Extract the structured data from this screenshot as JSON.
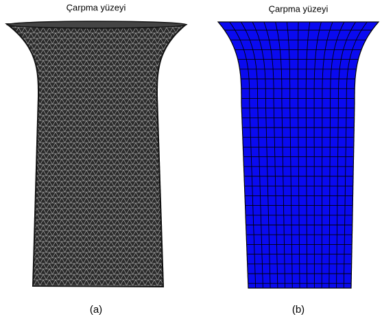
{
  "panels": [
    {
      "title": "Çarpma yüzeyi",
      "caption": "(a)"
    },
    {
      "title": "Çarpma yüzeyi",
      "caption": "(b)"
    }
  ]
}
